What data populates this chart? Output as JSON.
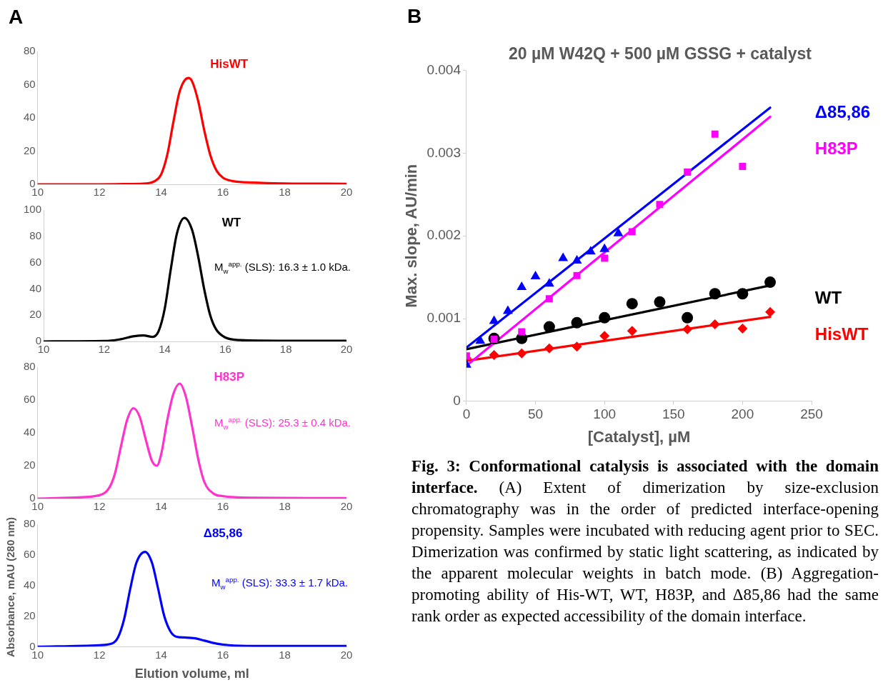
{
  "chart_data": [
    {
      "type": "line",
      "annotations": [
        "A"
      ],
      "xlim": [
        10,
        20
      ],
      "xticks": [
        10,
        12,
        14,
        16,
        18,
        20
      ],
      "ylim": [
        0,
        80
      ],
      "yticks": [
        0,
        20,
        40,
        60,
        80
      ],
      "marker": "none",
      "x": [
        10,
        12,
        13,
        13.5,
        13.8,
        14,
        14.2,
        14.4,
        14.6,
        14.88,
        15.0,
        15.2,
        15.4,
        15.6,
        15.8,
        16,
        16.3,
        17,
        18,
        20
      ],
      "series": [
        {
          "name": "HisWT",
          "color": "#ff0000",
          "values": [
            0,
            0,
            0.2,
            0.5,
            2,
            6,
            18,
            38,
            56,
            64,
            62,
            50,
            32,
            17,
            8,
            4,
            2,
            1,
            0.5,
            0.3
          ]
        }
      ]
    },
    {
      "type": "line",
      "annotations": [
        "M$_{w}$$^{app.}$ (SLS): 16.3 ± 1.0 kDa."
      ],
      "xlim": [
        10,
        20
      ],
      "xticks": [
        10,
        12,
        14,
        16,
        18,
        20
      ],
      "ylim": [
        0,
        100
      ],
      "yticks": [
        0,
        20,
        40,
        60,
        80,
        100
      ],
      "marker": "none",
      "x": [
        10,
        12,
        12.5,
        13,
        13.3,
        13.6,
        13.8,
        14,
        14.2,
        14.4,
        14.65,
        14.9,
        15.1,
        15.3,
        15.5,
        15.7,
        16,
        16.5,
        18,
        20
      ],
      "series": [
        {
          "name": "WT",
          "color": "#000000",
          "values": [
            0,
            0.3,
            1.5,
            4,
            4.5,
            3.5,
            8,
            25,
            55,
            82,
            94,
            85,
            65,
            40,
            20,
            9,
            3,
            1,
            0.5,
            0.5
          ]
        }
      ]
    },
    {
      "type": "line",
      "annotations": [
        "M$_{w}$$^{app.}$ (SLS): 25.3 ± 0.4 kDa."
      ],
      "xlim": [
        10,
        20
      ],
      "xticks": [
        10,
        12,
        14,
        16,
        18,
        20
      ],
      "ylim": [
        0,
        80
      ],
      "yticks": [
        0,
        20,
        40,
        60,
        80
      ],
      "marker": "none",
      "x": [
        10,
        11,
        12,
        12.3,
        12.5,
        12.7,
        12.9,
        13.1,
        13.3,
        13.5,
        13.7,
        13.86,
        14.0,
        14.2,
        14.4,
        14.6,
        14.8,
        15.0,
        15.2,
        15.4,
        15.7,
        16,
        17,
        20
      ],
      "series": [
        {
          "name": "H83P",
          "color": "#ff33cc",
          "values": [
            0,
            0.5,
            2,
            6,
            15,
            32,
            48,
            55,
            50,
            36,
            23,
            20,
            27,
            48,
            64,
            70,
            62,
            44,
            24,
            10,
            3,
            1.5,
            0.5,
            0.3
          ]
        }
      ]
    },
    {
      "type": "line",
      "annotations": [
        "M$_{w}$$^{app.}$ (SLS): 33.3 ± 1.7 kDa."
      ],
      "xlabel": "Elution volume, ml",
      "ylabel": "Absorbance, mAU (280 nm)",
      "xlim": [
        10,
        20
      ],
      "xticks": [
        10,
        12,
        14,
        16,
        18,
        20
      ],
      "ylim": [
        0,
        80
      ],
      "yticks": [
        0,
        20,
        40,
        60,
        80
      ],
      "marker": "none",
      "x": [
        10,
        12,
        12.4,
        12.6,
        12.8,
        13.0,
        13.2,
        13.48,
        13.7,
        13.9,
        14.1,
        14.3,
        14.5,
        14.8,
        15.1,
        15.4,
        15.8,
        16.2,
        17,
        20
      ],
      "series": [
        {
          "name": "Δ85,86",
          "color": "#0000ff",
          "values": [
            0,
            1,
            2,
            6,
            18,
            38,
            55,
            62,
            55,
            38,
            20,
            10,
            6.5,
            6,
            5.5,
            4,
            2,
            1,
            0.5,
            0.5
          ]
        }
      ]
    },
    {
      "type": "scatter",
      "title": "20 µM W42Q + 500 µM GSSG + catalyst",
      "xlabel": "[Catalyst], µM",
      "ylabel": "Max. slope, AU/min",
      "annotations": [
        "B",
        "Fig. 3: Conformational catalysis is associated with the domain interface.",
        "(A) Extent of dimerization by size-exclusion chromatography was in the order of predicted interface-opening propensity. Samples were incubated with reducing agent prior to SEC. Dimerization was confirmed by static light scattering, as indicated by the apparent molecular weights in batch mode. (B) Aggregation-promoting ability of His-WT, WT, H83P, and Δ85,86 had the same rank order as expected accessibility of the domain interface."
      ],
      "xlim": [
        0,
        250
      ],
      "xticks": [
        0,
        50,
        100,
        150,
        200,
        250
      ],
      "ylim": [
        0,
        0.004
      ],
      "yticks": [
        0,
        0.001,
        0.002,
        0.003,
        0.004
      ],
      "series": [
        {
          "name": "Δ85,86",
          "color": "#0000ff",
          "marker": "triangle",
          "x": [
            0,
            10,
            20,
            30,
            40,
            50,
            60,
            70,
            80,
            90,
            100,
            110
          ],
          "values": [
            0.00044,
            0.00073,
            0.00097,
            0.00109,
            0.00138,
            0.00151,
            0.00142,
            0.00173,
            0.0017,
            0.00181,
            0.00184,
            0.00203
          ]
        },
        {
          "name": "H83P",
          "color": "#ff00ff",
          "marker": "square",
          "x": [
            0,
            20,
            40,
            60,
            80,
            100,
            120,
            140,
            160,
            180,
            200
          ],
          "values": [
            0.00055,
            0.00075,
            0.00084,
            0.00124,
            0.00152,
            0.00173,
            0.00205,
            0.00238,
            0.00277,
            0.00323,
            0.00284
          ]
        },
        {
          "name": "WT",
          "color": "#000000",
          "marker": "circle",
          "x": [
            20,
            40,
            60,
            80,
            100,
            120,
            140,
            160,
            180,
            200,
            220
          ],
          "values": [
            0.00076,
            0.00076,
            0.0009,
            0.00095,
            0.00101,
            0.00118,
            0.0012,
            0.00101,
            0.0013,
            0.0013,
            0.00144
          ]
        },
        {
          "name": "HisWT",
          "color": "#ff0000",
          "marker": "diamond",
          "x": [
            0,
            20,
            40,
            60,
            80,
            100,
            120,
            160,
            180,
            200,
            220
          ],
          "values": [
            0.00052,
            0.00056,
            0.00058,
            0.00064,
            0.00066,
            0.00079,
            0.00085,
            0.00087,
            0.00093,
            0.00088,
            0.00108
          ]
        },
        {
          "type": "line",
          "color": "#0000ff",
          "marker": "none",
          "x": [
            0,
            220
          ],
          "values": [
            0.00065,
            0.00355
          ]
        },
        {
          "type": "line",
          "color": "#ff00ff",
          "marker": "none",
          "x": [
            0,
            220
          ],
          "values": [
            0.00043,
            0.00344
          ]
        },
        {
          "type": "line",
          "color": "#000000",
          "marker": "none",
          "x": [
            0,
            220
          ],
          "values": [
            0.00063,
            0.0014
          ]
        },
        {
          "type": "line",
          "color": "#ff0000",
          "marker": "none",
          "x": [
            0,
            220
          ],
          "values": [
            0.00049,
            0.00102
          ]
        }
      ]
    }
  ]
}
